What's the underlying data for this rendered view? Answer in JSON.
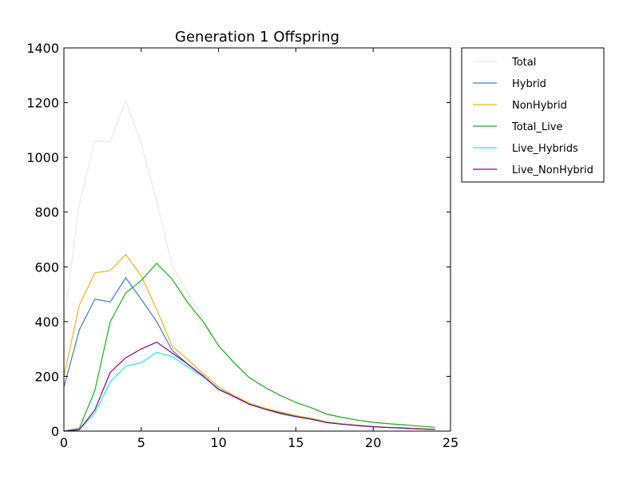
{
  "chart_data": {
    "type": "line",
    "title": "Generation 1 Offspring",
    "xlabel": "",
    "ylabel": "",
    "xlim": [
      0,
      25
    ],
    "ylim": [
      0,
      1400
    ],
    "xticks": [
      0,
      5,
      10,
      15,
      20,
      25
    ],
    "yticks": [
      0,
      200,
      400,
      600,
      800,
      1000,
      1200,
      1400
    ],
    "grid": false,
    "legend_position": "outside-right-top",
    "x": [
      0,
      1,
      2,
      3,
      4,
      5,
      6,
      7,
      8,
      9,
      10,
      11,
      12,
      13,
      14,
      15,
      16,
      17,
      18,
      19,
      20,
      21,
      22,
      23,
      24
    ],
    "series": [
      {
        "name": "Total",
        "color": "#e8e8e8",
        "values": [
          400,
          830,
          1060,
          1058,
          1208,
          1050,
          840,
          605,
          505,
          410,
          310,
          250,
          195,
          160,
          130,
          105,
          85,
          62,
          50,
          40,
          32,
          27,
          23,
          18,
          14
        ]
      },
      {
        "name": "Hybrid",
        "color": "#3a7fd5",
        "values": [
          160,
          370,
          482,
          472,
          560,
          482,
          400,
          295,
          245,
          200,
          155,
          128,
          100,
          82,
          67,
          55,
          45,
          32,
          26,
          21,
          16,
          13,
          11,
          8,
          6
        ]
      },
      {
        "name": "NonHybrid",
        "color": "#f0b21e",
        "values": [
          200,
          460,
          578,
          586,
          645,
          568,
          445,
          310,
          262,
          210,
          162,
          130,
          102,
          84,
          70,
          57,
          47,
          34,
          27,
          22,
          17,
          14,
          12,
          9,
          7
        ]
      },
      {
        "name": "Total_Live",
        "color": "#1aad1a",
        "values": [
          0,
          10,
          148,
          400,
          505,
          550,
          613,
          555,
          470,
          400,
          312,
          250,
          195,
          160,
          130,
          105,
          85,
          62,
          50,
          40,
          32,
          27,
          23,
          18,
          14
        ]
      },
      {
        "name": "Live_Hybrids",
        "color": "#1ee8e8",
        "values": [
          0,
          5,
          65,
          180,
          237,
          250,
          288,
          272,
          235,
          198,
          155,
          126,
          97,
          80,
          63,
          52,
          42,
          32,
          25,
          20,
          16,
          13,
          11,
          8,
          6
        ]
      },
      {
        "name": "Live_NonHybrid",
        "color": "#8b008b",
        "values": [
          0,
          5,
          77,
          215,
          268,
          300,
          325,
          285,
          245,
          202,
          152,
          126,
          98,
          80,
          65,
          53,
          44,
          31,
          25,
          20,
          16,
          13,
          11,
          8,
          6
        ]
      }
    ]
  }
}
